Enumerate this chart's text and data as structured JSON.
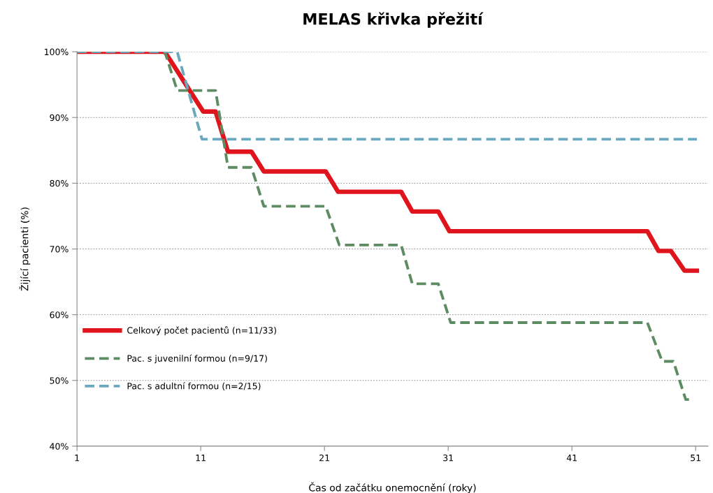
{
  "chart_data": {
    "type": "line",
    "title": "MELAS křivka přežití",
    "xlabel": "Čas od začátku onemocnění (roky)",
    "ylabel": "Žijící pacienti (%)",
    "xlim": [
      1,
      52
    ],
    "xticks": [
      1,
      11,
      21,
      31,
      41,
      51
    ],
    "ylim": [
      40,
      100
    ],
    "yticks": [
      {
        "value": 40,
        "label": "40%"
      },
      {
        "value": 50,
        "label": "50%"
      },
      {
        "value": 60,
        "label": "60%"
      },
      {
        "value": 70,
        "label": "70%"
      },
      {
        "value": 80,
        "label": "80%"
      },
      {
        "value": 90,
        "label": "90%"
      },
      {
        "value": 100,
        "label": "100%"
      }
    ],
    "grid": "y",
    "legend": "bottom left",
    "marker": "none",
    "series": [
      {
        "name": "Celkový počet pacientů (n=11/33)",
        "color": "#e0141c",
        "line_style": "solid",
        "x": [
          1,
          8.1,
          11.2,
          12.2,
          13.2,
          15.1,
          16.1,
          21.1,
          22.1,
          27.2,
          28.1,
          30.2,
          31.1,
          47.1,
          48.0,
          49.0,
          50.1,
          51.1
        ],
        "values": [
          100,
          100,
          90.9,
          90.9,
          84.8,
          84.8,
          81.8,
          81.8,
          78.7,
          78.7,
          75.7,
          75.7,
          72.7,
          72.7,
          69.7,
          69.7,
          66.7,
          66.7
        ]
      },
      {
        "name": "Pac. s juvenilní formou (n=9/17)",
        "color": "#5e8c62",
        "line_style": "dashed",
        "x": [
          1,
          8.1,
          9.1,
          12.2,
          13.2,
          15.1,
          16.1,
          21.1,
          22.2,
          27.2,
          28.1,
          30.2,
          31.2,
          47.1,
          48.3,
          49.2,
          50.2,
          50.7
        ],
        "values": [
          100,
          100,
          94.1,
          94.1,
          82.4,
          82.4,
          76.5,
          76.5,
          70.6,
          70.6,
          64.7,
          64.7,
          58.8,
          58.8,
          52.9,
          52.9,
          47.1,
          47.1
        ]
      },
      {
        "name": "Pac. s adultní formou (n=2/15)",
        "color": "#6aa8bf",
        "line_style": "dashed",
        "x": [
          1,
          9.1,
          11.1,
          51.1
        ],
        "values": [
          100,
          100,
          86.7,
          86.7
        ]
      }
    ]
  }
}
